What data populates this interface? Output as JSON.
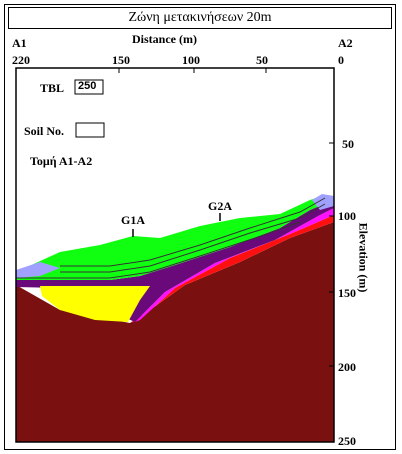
{
  "title": "Ζώνη μετακινήσεων 20m",
  "x_axis": {
    "label": "Distance (m)",
    "ticks": [
      "220",
      "150",
      "100",
      "50",
      "0"
    ]
  },
  "y_axis": {
    "label": "Elevation (m)",
    "ticks": [
      "50",
      "100",
      "150",
      "200",
      "250"
    ]
  },
  "endpoints": {
    "left": "A1",
    "right": "A2"
  },
  "legend": {
    "tbl_label": "TBL",
    "tbl_value": "250",
    "soil_label": "Soil No.",
    "soil_value": "",
    "section_label": "Τομή Α1-Α2"
  },
  "boreholes": [
    "G1A",
    "G2A"
  ],
  "colors": {
    "bedrock": "#7a1010",
    "red_layer": "#ff1010",
    "magenta_layer": "#ff10ff",
    "purple_layer": "#6a0a7a",
    "yellow_layer": "#ffff00",
    "green_layer": "#10ff10",
    "lavender_layer": "#a0a0ff"
  }
}
